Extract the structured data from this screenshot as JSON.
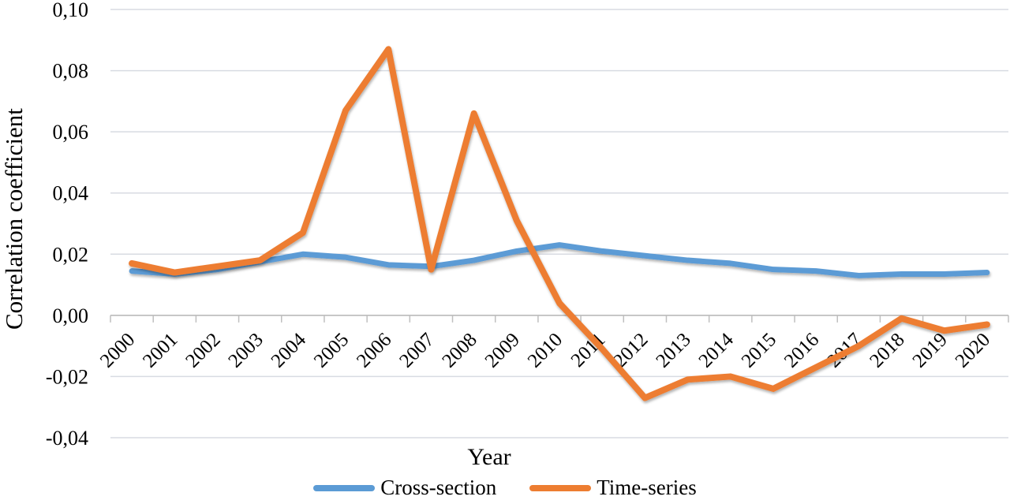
{
  "chart_data": {
    "type": "line",
    "title": "",
    "xlabel": "Year",
    "ylabel": "Correlation coefficient",
    "categories": [
      "2000",
      "2001",
      "2002",
      "2003",
      "2004",
      "2005",
      "2006",
      "2007",
      "2008",
      "2009",
      "2010",
      "2011",
      "2012",
      "2013",
      "2014",
      "2015",
      "2016",
      "2017",
      "2018",
      "2019",
      "2020"
    ],
    "series": [
      {
        "name": "Cross-section",
        "color": "#5B9BD5",
        "values": [
          0.0145,
          0.0135,
          0.015,
          0.0175,
          0.02,
          0.019,
          0.0165,
          0.016,
          0.018,
          0.021,
          0.023,
          0.021,
          0.0195,
          0.018,
          0.017,
          0.015,
          0.0145,
          0.013,
          0.0135,
          0.0135,
          0.014
        ]
      },
      {
        "name": "Time-series",
        "color": "#ED7D31",
        "values": [
          0.017,
          0.014,
          0.016,
          0.018,
          0.027,
          0.067,
          0.087,
          0.015,
          0.066,
          0.031,
          0.004,
          -0.011,
          -0.027,
          -0.021,
          -0.02,
          -0.024,
          -0.017,
          -0.01,
          -0.001,
          -0.005,
          -0.003
        ]
      }
    ],
    "ylim": [
      -0.04,
      0.1
    ],
    "yticks": [
      0.1,
      0.08,
      0.06,
      0.04,
      0.02,
      0.0,
      -0.02,
      -0.04
    ],
    "ytick_labels": [
      "0,10",
      "0,08",
      "0,06",
      "0,04",
      "0,02",
      "0,00",
      "-0,02",
      "-0,04"
    ],
    "decimal_separator": ",",
    "grid": true,
    "x_label_rotation_deg": -45,
    "legend_position": "bottom",
    "colors": {
      "gridline": "#D8DBE2",
      "axis_line": "#BFBFBF",
      "text": "#000000"
    }
  }
}
